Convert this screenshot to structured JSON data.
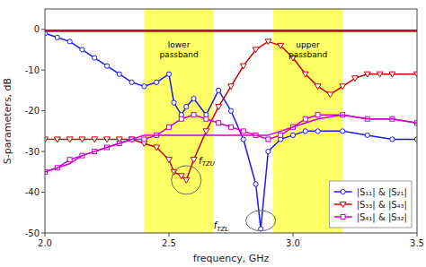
{
  "chart_data": {
    "type": "line",
    "xlabel": "frequency, GHz",
    "ylabel": "S-parameters, dB",
    "xlim": [
      2.0,
      3.5
    ],
    "ylim": [
      -50,
      5
    ],
    "xticks": [
      {
        "value": 2.0,
        "label": "2.0"
      },
      2.5,
      {
        "value": 3.0,
        "label": "3.0"
      },
      3.5
    ],
    "yticks": [
      -50,
      -40,
      -30,
      -20,
      -10,
      0
    ],
    "grid": false,
    "legend": "lower right",
    "passbands": [
      [
        2.4,
        2.68
      ],
      [
        2.92,
        3.2
      ]
    ],
    "passband_color": "#ffff66",
    "annotations": [
      {
        "text": "lower\npassband",
        "x": 2.54,
        "y": -2.5
      },
      {
        "text": "upper\npassband",
        "x": 3.06,
        "y": -2.5
      },
      {
        "text": "f",
        "subscript": "TZU",
        "x": 2.62,
        "y": -33,
        "ellipse": {
          "x": 2.57,
          "y": -37,
          "width": 0.12,
          "height": 7
        }
      },
      {
        "text": "f",
        "subscript": "TZL",
        "x": 2.68,
        "y": -49,
        "ellipse": {
          "x": 2.87,
          "y": -47,
          "width": 0.12,
          "height": 5
        }
      }
    ],
    "series": [
      {
        "name": "|S₁₁| & |S₂₁|",
        "color": "#1a1aff",
        "marker": "circle",
        "x": [
          2.0,
          2.05,
          2.1,
          2.15,
          2.2,
          2.25,
          2.3,
          2.35,
          2.4,
          2.45,
          2.5,
          2.52,
          2.55,
          2.57,
          2.6,
          2.65,
          2.7,
          2.75,
          2.8,
          2.85,
          2.87,
          2.9,
          2.95,
          3.0,
          3.05,
          3.1,
          3.2,
          3.3,
          3.4,
          3.5
        ],
        "values": [
          -1,
          -2,
          -3,
          -5,
          -7,
          -9,
          -11,
          -13,
          -14,
          -13,
          -11,
          -18,
          -21,
          -19,
          -17,
          -21,
          -15,
          -20,
          -27,
          -38,
          -49,
          -30,
          -27,
          -26,
          -25,
          -25,
          -25,
          -26,
          -27,
          -27
        ]
      },
      {
        "color": "#1a1aff",
        "x": [
          2.0,
          2.05,
          2.1,
          2.15,
          2.2,
          2.25,
          2.3,
          2.35,
          2.4,
          2.45,
          2.5,
          2.55,
          2.6,
          2.65,
          2.7,
          2.75,
          2.8,
          2.85,
          2.9,
          2.95,
          3.0,
          3.05,
          3.1,
          3.2,
          3.3,
          3.4,
          3.5
        ],
        "values": [
          -0.2,
          -0.2,
          -0.2,
          -0.2,
          -0.2,
          -0.2,
          -0.2,
          -0.2,
          -0.2,
          -0.2,
          -0.2,
          -0.2,
          -0.2,
          -0.2,
          -0.2,
          -0.2,
          -0.2,
          -0.2,
          -0.2,
          -0.2,
          -0.2,
          -0.2,
          -0.2,
          -0.2,
          -0.2,
          -0.2,
          -0.2
        ]
      },
      {
        "name": "|S₃₃| & |S₄₃|",
        "color": "#cc0000",
        "marker": "triangle-down",
        "x": [
          2.0,
          2.05,
          2.1,
          2.15,
          2.2,
          2.25,
          2.3,
          2.35,
          2.4,
          2.45,
          2.5,
          2.52,
          2.55,
          2.57,
          2.6,
          2.65,
          2.7,
          2.75,
          2.8,
          2.85,
          2.9,
          2.95,
          3.0,
          3.05,
          3.1,
          3.15,
          3.2,
          3.25,
          3.3,
          3.35,
          3.4,
          3.5
        ],
        "values": [
          -27,
          -27,
          -27,
          -27,
          -27,
          -27,
          -27,
          -27,
          -28,
          -29,
          -32,
          -35,
          -36,
          -37,
          -32,
          -25,
          -19,
          -14,
          -9,
          -5,
          -3,
          -4,
          -7,
          -11,
          -14,
          -16,
          -14,
          -12,
          -11,
          -11,
          -11,
          -11
        ]
      },
      {
        "color": "#cc0000",
        "x": [
          2.0,
          2.1,
          2.2,
          2.3,
          2.4,
          2.5,
          2.6,
          2.7,
          2.8,
          2.9,
          3.0,
          3.1,
          3.2,
          3.3,
          3.4,
          3.5
        ],
        "values": [
          -0.5,
          -0.5,
          -0.5,
          -0.5,
          -0.5,
          -0.5,
          -0.5,
          -0.5,
          -0.5,
          -0.5,
          -0.5,
          -0.5,
          -0.5,
          -0.5,
          -0.5,
          -0.5
        ]
      },
      {
        "name": "|S₄₁| & |S₃₂|",
        "color": "#cc00cc",
        "marker": "square",
        "x": [
          2.0,
          2.05,
          2.1,
          2.15,
          2.2,
          2.25,
          2.3,
          2.35,
          2.4,
          2.45,
          2.5,
          2.55,
          2.6,
          2.65,
          2.7,
          2.75,
          2.8,
          2.85,
          2.9,
          2.95,
          3.0,
          3.05,
          3.1,
          3.2,
          3.3,
          3.4,
          3.5
        ],
        "values": [
          -35,
          -34,
          -32,
          -31,
          -30,
          -29,
          -28,
          -27,
          -27,
          -26,
          -24,
          -22,
          -21,
          -22,
          -23,
          -24,
          -25,
          -26,
          -27,
          -26,
          -24,
          -22,
          -21,
          -21,
          -22,
          -22,
          -23
        ]
      },
      {
        "color": "#cc00cc",
        "x": [
          2.0,
          2.05,
          2.1,
          2.15,
          2.2,
          2.25,
          2.3,
          2.35,
          2.4,
          2.45,
          2.5,
          2.55,
          2.6,
          2.65,
          2.7,
          2.75,
          2.8,
          2.85,
          2.9,
          2.95,
          3.0,
          3.05,
          3.1,
          3.2,
          3.3,
          3.4,
          3.5
        ],
        "values": [
          -35,
          -34,
          -33,
          -31,
          -30,
          -29,
          -28,
          -27,
          -26,
          -26,
          -26,
          -26,
          -26,
          -26,
          -26,
          -26,
          -26,
          -26,
          -26,
          -25,
          -24,
          -23,
          -22,
          -21,
          -22,
          -22,
          -23
        ]
      }
    ]
  }
}
